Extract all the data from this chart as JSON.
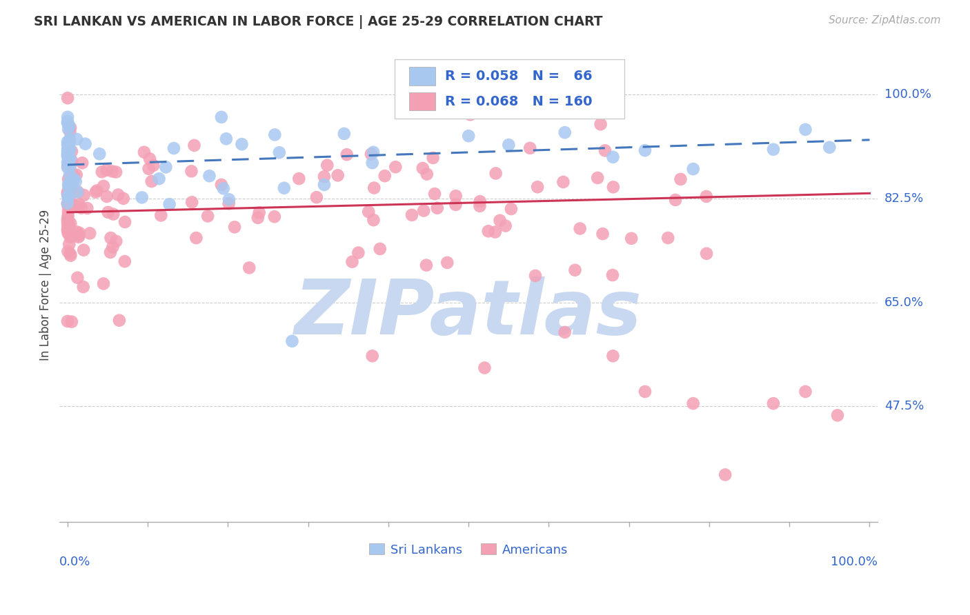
{
  "title": "SRI LANKAN VS AMERICAN IN LABOR FORCE | AGE 25-29 CORRELATION CHART",
  "source": "Source: ZipAtlas.com",
  "ylabel": "In Labor Force | Age 25-29",
  "ytick_labels": [
    "100.0%",
    "82.5%",
    "65.0%",
    "47.5%"
  ],
  "ytick_values": [
    1.0,
    0.825,
    0.65,
    0.475
  ],
  "xlim": [
    0.0,
    1.0
  ],
  "ylim": [
    0.28,
    1.08
  ],
  "legend_text_color": "#3366cc",
  "sri_color": "#a8c8f0",
  "amer_color": "#f4a0b4",
  "sri_line_color": "#4477bb",
  "amer_line_color": "#cc3355",
  "axis_label_color": "#3366cc",
  "watermark_zip_color": "#c8d8f0",
  "watermark_atlas_color": "#c8d8f0",
  "background_color": "#ffffff",
  "title_color": "#333333",
  "grid_color": "#cccccc",
  "sri_R": 0.058,
  "amer_R": 0.068,
  "sri_N": 66,
  "amer_N": 160,
  "sri_line_start_y": 0.882,
  "sri_line_end_y": 0.924,
  "amer_line_start_y": 0.802,
  "amer_line_end_y": 0.834
}
